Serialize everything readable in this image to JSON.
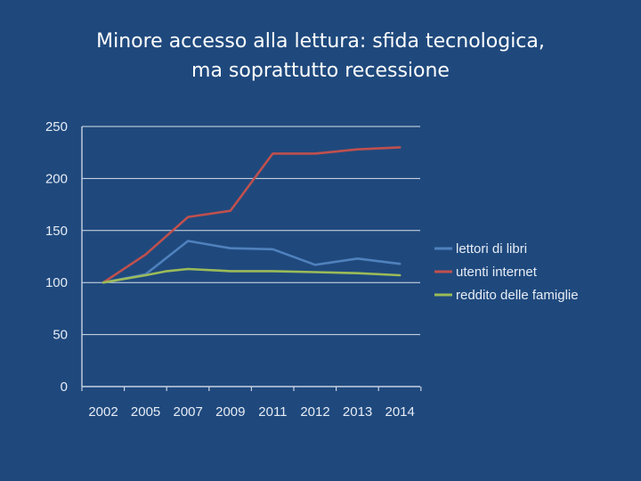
{
  "title_line1": "Minore accesso alla lettura: sfida tecnologica,",
  "title_line2": "ma soprattutto recessione",
  "chart_data": {
    "type": "line",
    "title": "Minore accesso alla lettura: sfida tecnologica, ma soprattutto recessione",
    "categories": [
      "2002",
      "2005",
      "2007",
      "2009",
      "2011",
      "2012",
      "2013",
      "2014"
    ],
    "ylim": [
      0,
      250
    ],
    "yticks": [
      0,
      50,
      100,
      150,
      200,
      250
    ],
    "grid": true,
    "legend_position": "right",
    "series": [
      {
        "name": "lettori di libri",
        "color": "#4f81bd",
        "points": [
          [
            0,
            100
          ],
          [
            1,
            108
          ],
          [
            2,
            140
          ],
          [
            3,
            133
          ],
          [
            4,
            132
          ],
          [
            5,
            117
          ],
          [
            6,
            123
          ],
          [
            7,
            118
          ]
        ]
      },
      {
        "name": "utenti internet",
        "color": "#c0504d",
        "points": [
          [
            0,
            100
          ],
          [
            1,
            127
          ],
          [
            2,
            163
          ],
          [
            2.5,
            166
          ],
          [
            3,
            169
          ],
          [
            4,
            224
          ],
          [
            5,
            224
          ],
          [
            6,
            228
          ],
          [
            7,
            230
          ]
        ]
      },
      {
        "name": "reddito delle famiglie",
        "color": "#9bbb59",
        "points": [
          [
            0,
            100
          ],
          [
            1,
            107
          ],
          [
            1.5,
            111
          ],
          [
            2,
            113
          ],
          [
            3,
            111
          ],
          [
            4,
            111
          ],
          [
            5,
            110
          ],
          [
            6,
            109
          ],
          [
            7,
            107
          ]
        ]
      }
    ]
  }
}
